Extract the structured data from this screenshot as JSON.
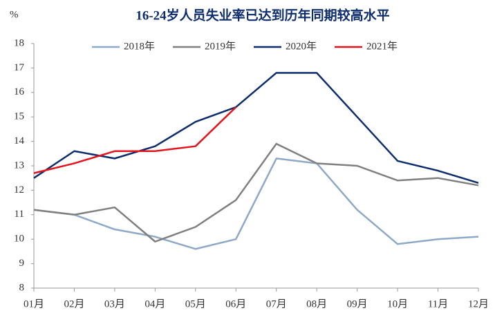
{
  "chart_data": {
    "type": "line",
    "title": "16-24岁人员失业率已达到历年同期较高水平",
    "y_label": "%",
    "categories": [
      "01月",
      "02月",
      "03月",
      "04月",
      "05月",
      "06月",
      "07月",
      "08月",
      "09月",
      "10月",
      "11月",
      "12月"
    ],
    "series": [
      {
        "name": "2018年",
        "color": "#8ea9c8",
        "values": [
          11.2,
          11.0,
          10.4,
          10.1,
          9.6,
          10.0,
          13.3,
          13.1,
          11.2,
          9.8,
          10.0,
          10.1
        ]
      },
      {
        "name": "2019年",
        "color": "#7f7f7f",
        "values": [
          11.2,
          11.0,
          11.3,
          9.9,
          10.5,
          11.6,
          13.9,
          13.1,
          13.0,
          12.4,
          12.5,
          12.2
        ]
      },
      {
        "name": "2020年",
        "color": "#0d2c6e",
        "values": [
          12.5,
          13.6,
          13.3,
          13.8,
          14.8,
          15.4,
          16.8,
          16.8,
          15.0,
          13.2,
          12.8,
          12.3
        ]
      },
      {
        "name": "2021年",
        "color": "#e3141b",
        "values": [
          12.7,
          13.1,
          13.6,
          13.6,
          13.8,
          15.4,
          null,
          null,
          null,
          null,
          null,
          null
        ]
      }
    ],
    "ylim": [
      8,
      18
    ],
    "yticks": [
      8,
      9,
      10,
      11,
      12,
      13,
      14,
      15,
      16,
      17,
      18
    ],
    "grid": false,
    "legend": "top"
  }
}
